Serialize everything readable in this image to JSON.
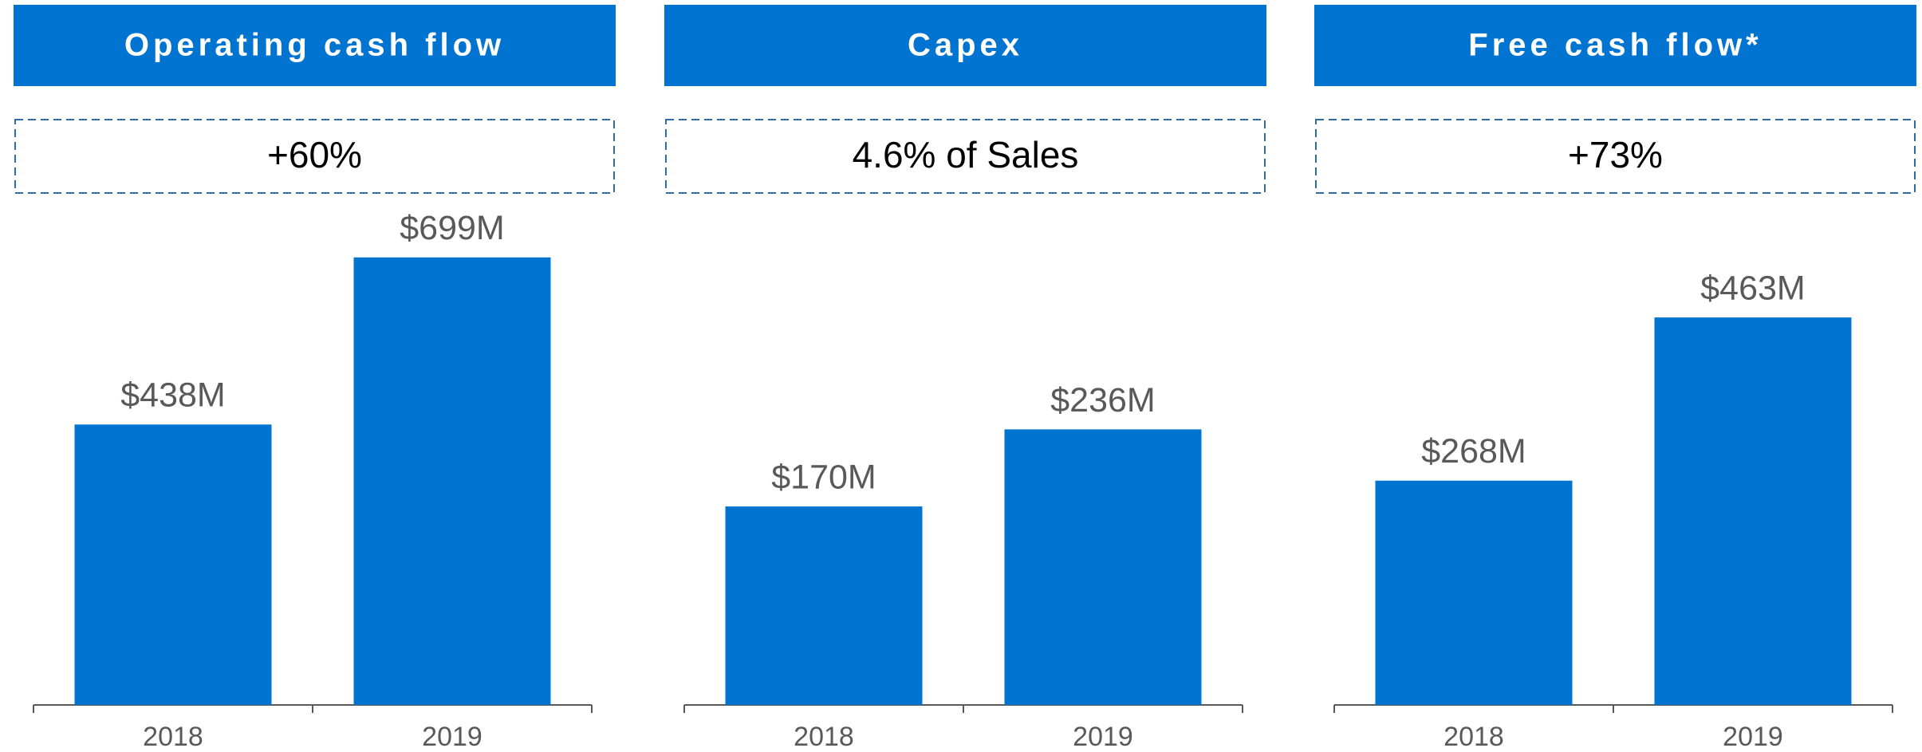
{
  "chart_data": [
    {
      "type": "bar",
      "title": "Operating cash flow",
      "annotation": "+60%",
      "categories": [
        "2018",
        "2019"
      ],
      "values": [
        438,
        699
      ],
      "value_labels": [
        "$438M",
        "$699M"
      ],
      "color": "#0074d0",
      "ylim": [
        0,
        766
      ]
    },
    {
      "type": "bar",
      "title": "Capex",
      "annotation": "4.6% of Sales",
      "categories": [
        "2018",
        "2019"
      ],
      "values": [
        170,
        236
      ],
      "value_labels": [
        "$170M",
        "$236M"
      ],
      "color": "#0074d0",
      "ylim": [
        0,
        420
      ]
    },
    {
      "type": "bar",
      "title": "Free cash flow*",
      "annotation": "+73%",
      "categories": [
        "2018",
        "2019"
      ],
      "values": [
        268,
        463
      ],
      "value_labels": [
        "$268M",
        "$463M"
      ],
      "color": "#0074d0",
      "ylim": [
        0,
        586
      ]
    }
  ]
}
